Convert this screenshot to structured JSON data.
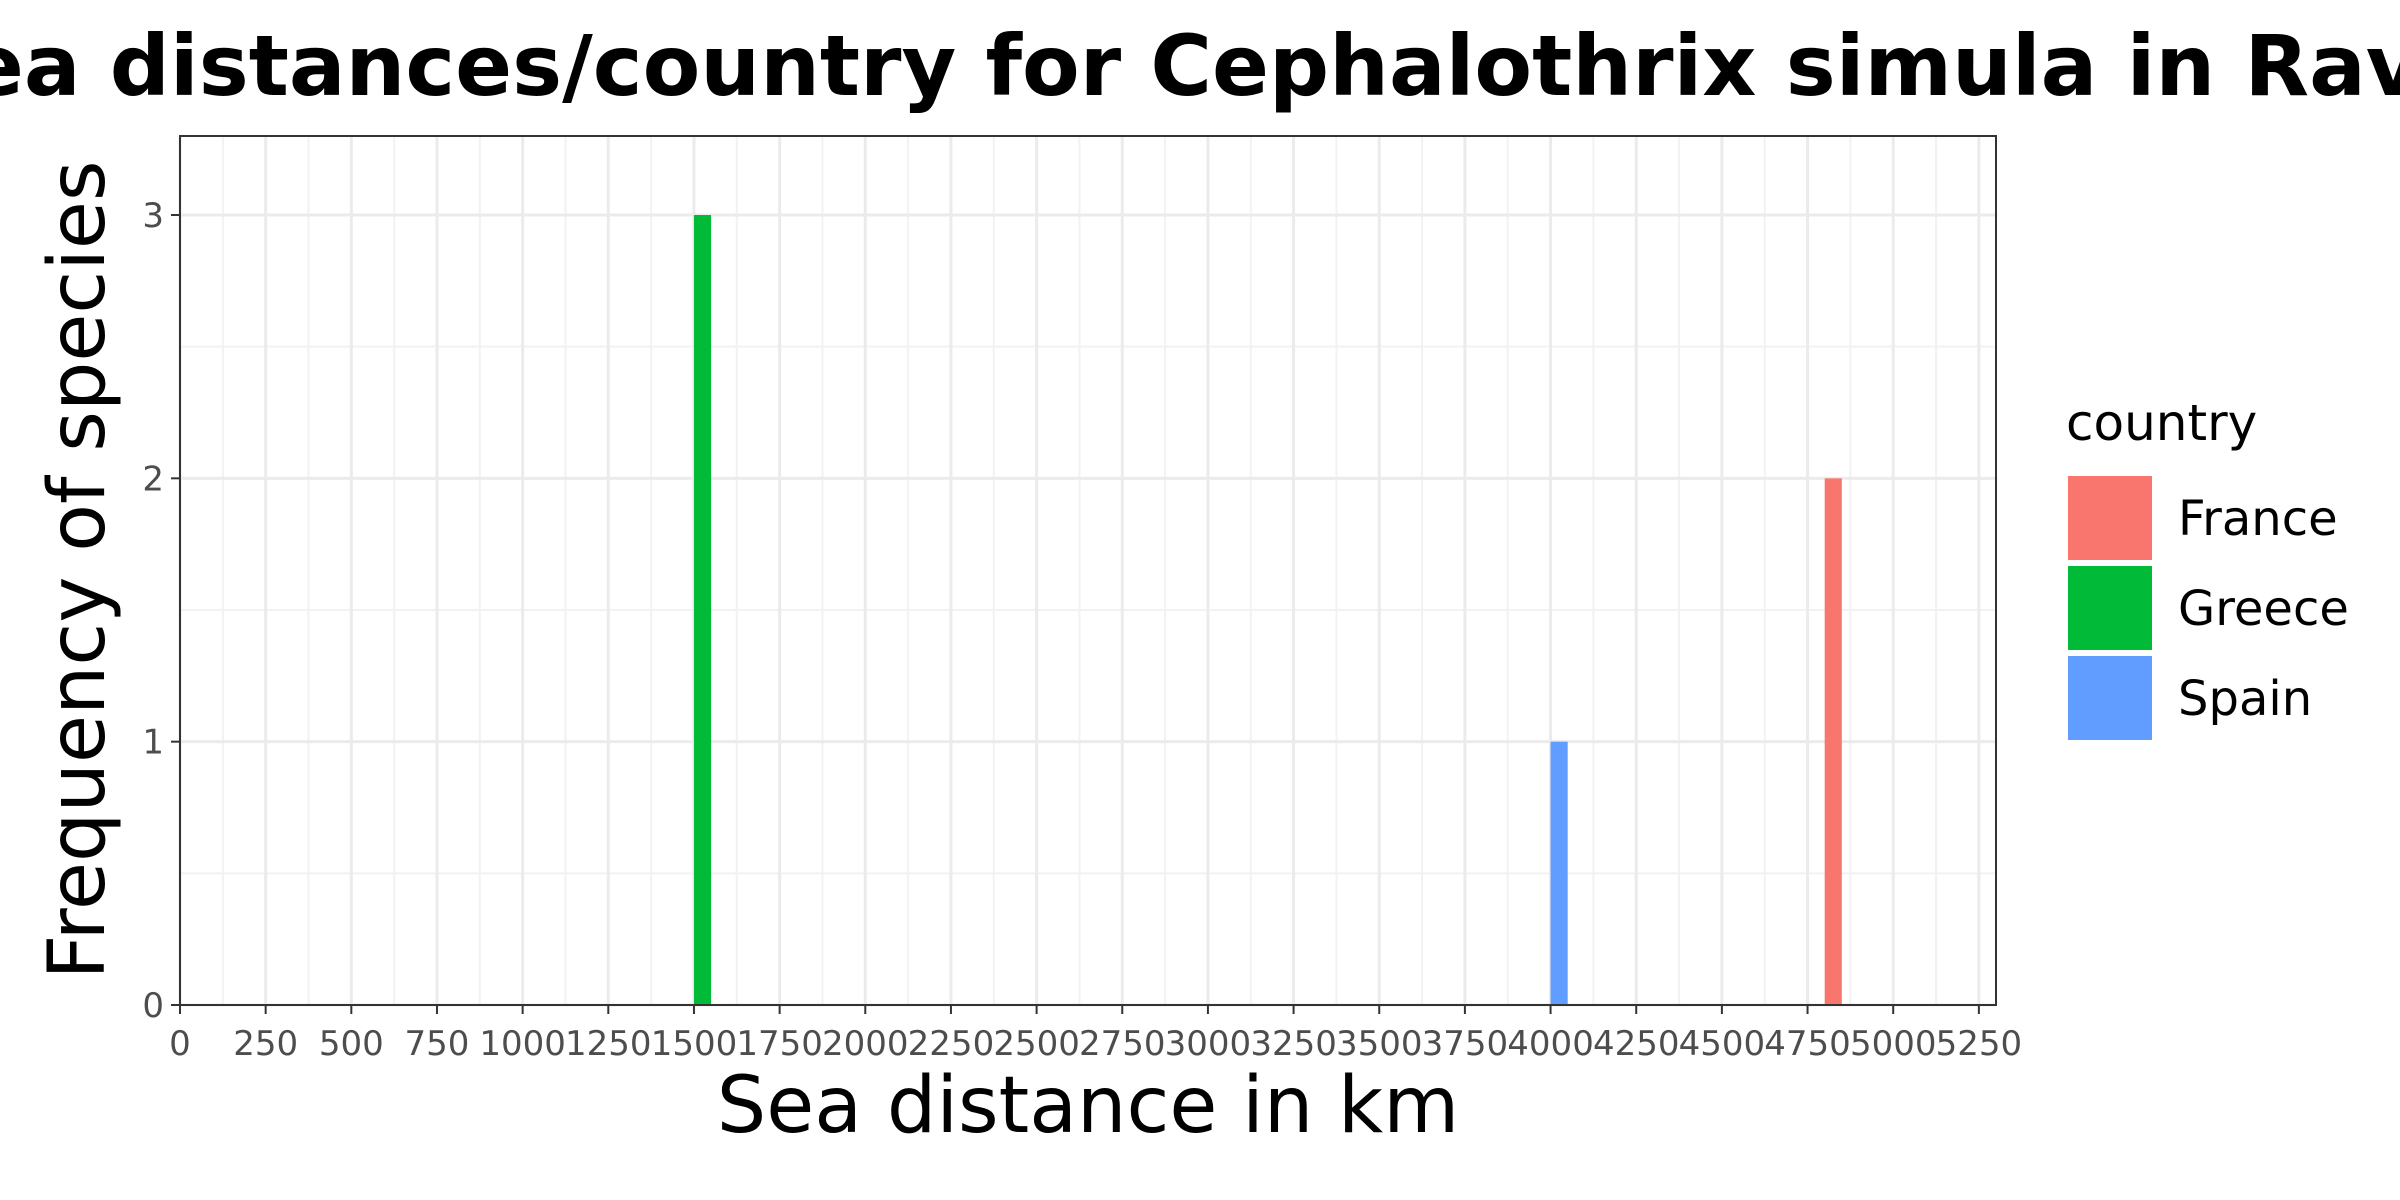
{
  "chart_data": {
    "type": "bar",
    "title": "es of Sea distances/country for Cephalothrix simula in Raven",
    "xlabel": "Sea distance in km",
    "ylabel": "Frequency of species",
    "xlim": [
      0,
      5300
    ],
    "ylim": [
      0,
      3.3
    ],
    "x_ticks": [
      "0",
      "250",
      "500",
      "750",
      "1000",
      "1250",
      "1500",
      "1750",
      "2000",
      "2250",
      "2500",
      "2750",
      "3000",
      "3250",
      "3500",
      "3750",
      "4000",
      "4250",
      "4500",
      "4750",
      "5000",
      "5250"
    ],
    "y_ticks": [
      "0",
      "1",
      "2",
      "3"
    ],
    "bar_width": 50,
    "grid": true,
    "legend": {
      "title": "country",
      "position": "right",
      "entries": [
        {
          "name": "France",
          "color": "#F8766D"
        },
        {
          "name": "Greece",
          "color": "#00BA38"
        },
        {
          "name": "Spain",
          "color": "#619CFF"
        }
      ]
    },
    "bars": [
      {
        "country": "Greece",
        "x": 1525,
        "value": 3,
        "color": "#00BA38"
      },
      {
        "country": "Spain",
        "x": 4025,
        "value": 1,
        "color": "#619CFF"
      },
      {
        "country": "France",
        "x": 4825,
        "value": 2,
        "color": "#F8766D"
      }
    ]
  }
}
